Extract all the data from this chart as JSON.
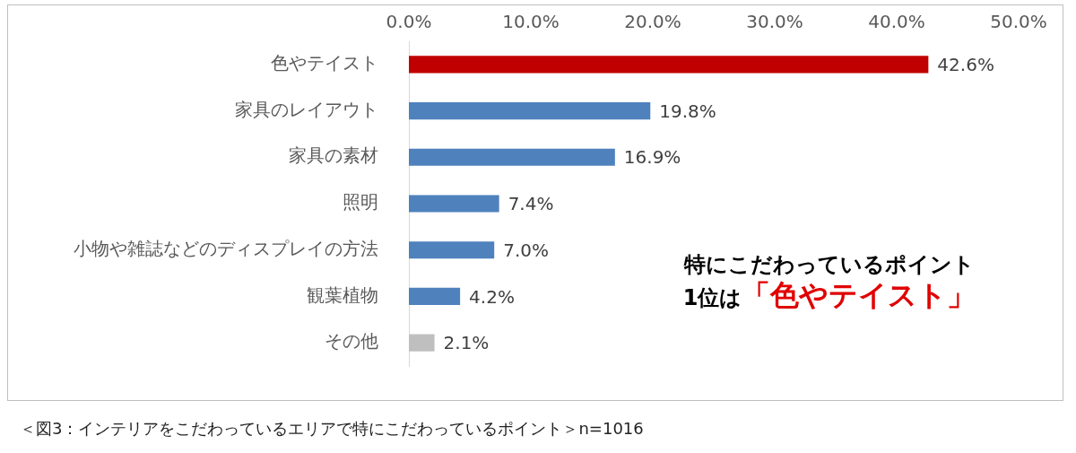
{
  "chart_data": {
    "type": "bar",
    "orientation": "horizontal",
    "categories": [
      "色やテイスト",
      "家具のレイアウト",
      "家具の素材",
      "照明",
      "小物や雑誌などのディスプレイの方法",
      "観葉植物",
      "その他"
    ],
    "values": [
      42.6,
      19.8,
      16.9,
      7.4,
      7.0,
      4.2,
      2.1
    ],
    "colors": [
      "#c00000",
      "#4f81bd",
      "#4f81bd",
      "#4f81bd",
      "#4f81bd",
      "#4f81bd",
      "#bfbfbf"
    ],
    "value_labels": [
      "42.6%",
      "19.8%",
      "16.9%",
      "7.4%",
      "7.0%",
      "4.2%",
      "2.1%"
    ],
    "xlim": [
      0,
      50
    ],
    "xticks": [
      {
        "value": 0,
        "label": "0.0%"
      },
      {
        "value": 10,
        "label": "10.0%"
      },
      {
        "value": 20,
        "label": "20.0%"
      },
      {
        "value": 30,
        "label": "30.0%"
      },
      {
        "value": 40,
        "label": "40.0%"
      },
      {
        "value": 50,
        "label": "50.0%"
      }
    ],
    "annotations": [
      "特にこだわっているポイント",
      "1位は",
      "「色やテイスト」",
      "＜図3：インテリアをこだわっているエリアで特にこだわっているポイント＞n=1016"
    ]
  }
}
